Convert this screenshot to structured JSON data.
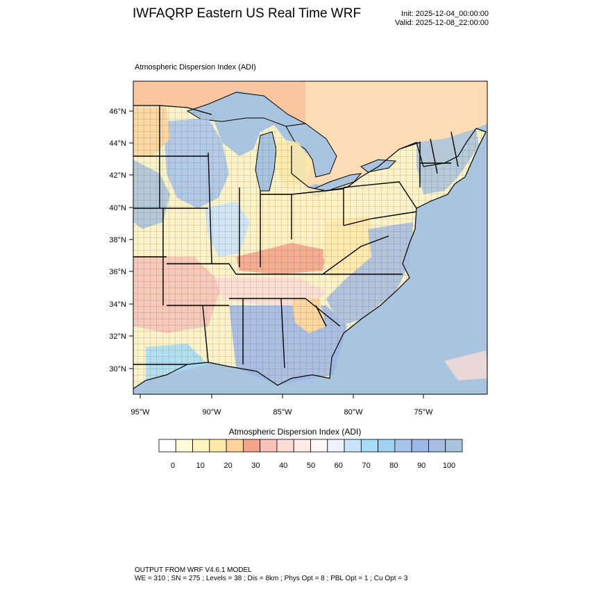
{
  "header": {
    "title": "IWFAQRP Eastern US Real Time WRF",
    "init": "Init: 2025-12-04_00:00:00",
    "valid": "Valid: 2025-12-08_22:00:00"
  },
  "map": {
    "subtitle": "Atmospheric Dispersion Index   (ADI)",
    "lat_labels": [
      "46°N",
      "44°N",
      "42°N",
      "40°N",
      "38°N",
      "36°N",
      "34°N",
      "32°N",
      "30°N"
    ],
    "lon_labels": [
      "95°W",
      "90°W",
      "85°W",
      "80°W",
      "75°W"
    ],
    "colors": {
      "ocean": "#a9c4de",
      "land_background": "#fbf2c8",
      "canada_west": "#f9c6a0",
      "canada_east": "#fbdcb5",
      "state_border": "#000000",
      "county_border": "#333333"
    }
  },
  "colorbar": {
    "title": "Atmospheric Dispersion Index  (ADI)",
    "tick_labels": [
      "0",
      "10",
      "20",
      "30",
      "40",
      "50",
      "60",
      "70",
      "80",
      "90",
      "100"
    ],
    "colors": [
      "#ffffff",
      "#fffbd9",
      "#fff3c0",
      "#ffe9a8",
      "#fdd39a",
      "#f6a38a",
      "#f7c3b8",
      "#fadcd4",
      "#fcebe6",
      "#fdf7f6",
      "#eef2ff",
      "#c9e5fb",
      "#a6dcf5",
      "#9ed2f0",
      "#a7c4ec",
      "#9db7e6",
      "#a8bde0",
      "#a9c3dd"
    ]
  },
  "footer": {
    "line1": "OUTPUT FROM WRF V4.6.1 MODEL",
    "line2": "WE = 310 ; SN = 275 ; Levels = 38 ; Dis = 8km ; Phys Opt = 8 ; PBL Opt = 1 ; Cu Opt = 3"
  }
}
